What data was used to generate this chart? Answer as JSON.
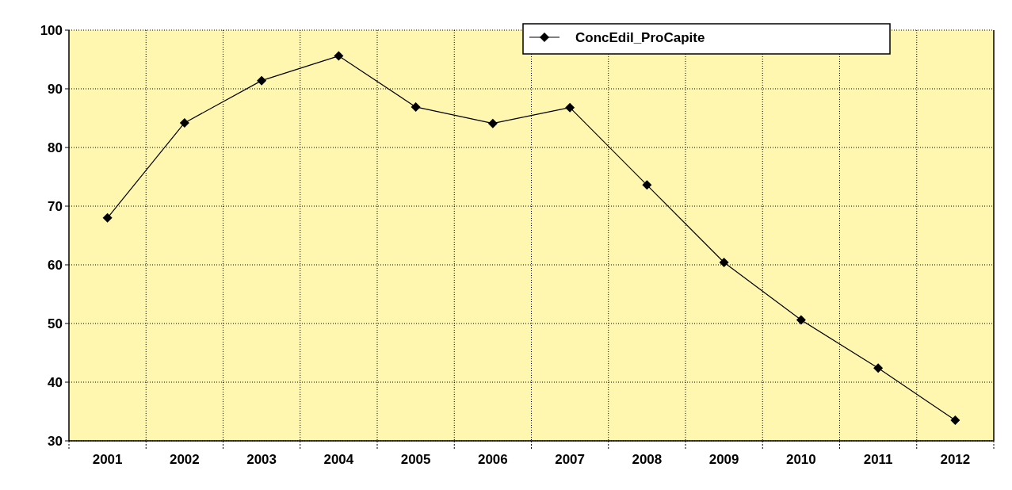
{
  "chart_data": {
    "type": "line",
    "categories": [
      "2001",
      "2002",
      "2003",
      "2004",
      "2005",
      "2006",
      "2007",
      "2008",
      "2009",
      "2010",
      "2011",
      "2012"
    ],
    "series": [
      {
        "name": "ConcEdil_ProCapite",
        "color": "#000000",
        "values": [
          68.0,
          84.2,
          91.4,
          95.6,
          86.9,
          84.1,
          86.8,
          73.6,
          60.4,
          50.6,
          42.4,
          33.5
        ]
      }
    ],
    "ylim": [
      30,
      100
    ],
    "yticks": [
      30,
      40,
      50,
      60,
      70,
      80,
      90,
      100
    ],
    "grid": true,
    "legend": "top right",
    "marker": "diamond",
    "line_style": "solid"
  }
}
